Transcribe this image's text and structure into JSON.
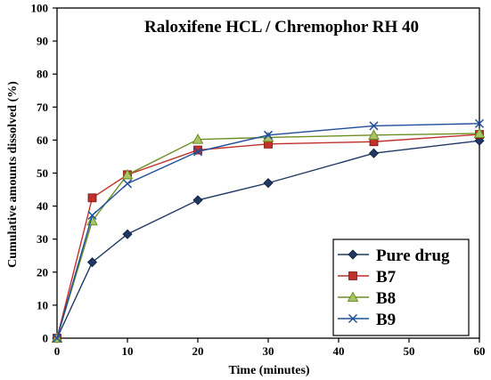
{
  "chart_data": {
    "type": "line",
    "title": "Raloxifene HCL / Chremophor RH 40",
    "xlabel": "Time (minutes)",
    "ylabel": "Cumulative  amounts dissolved (%)",
    "x": [
      0,
      5,
      10,
      20,
      30,
      45,
      60
    ],
    "xlim": [
      0,
      60
    ],
    "ylim": [
      0,
      100
    ],
    "xticks": [
      0,
      10,
      20,
      30,
      40,
      50,
      60
    ],
    "yticks": [
      0,
      10,
      20,
      30,
      40,
      50,
      60,
      70,
      80,
      90,
      100
    ],
    "grid": false,
    "legend_position": "bottom-right",
    "series": [
      {
        "name": "Pure drug",
        "color": "#1f3864",
        "marker": "diamond",
        "values": [
          0,
          23,
          31.5,
          41.8,
          47,
          56,
          59.8
        ]
      },
      {
        "name": "B7",
        "color": "#c0312b",
        "marker": "square",
        "values": [
          0,
          42.5,
          49.5,
          57,
          58.8,
          59.5,
          61.7
        ]
      },
      {
        "name": "B8",
        "color": "#6b8e23",
        "marker": "triangle",
        "values": [
          0,
          35.5,
          49.5,
          60.2,
          60.8,
          61.5,
          62
        ]
      },
      {
        "name": "B9",
        "color": "#1f4e9a",
        "marker": "x",
        "values": [
          0,
          37.2,
          46.8,
          56.5,
          61.5,
          64.3,
          65
        ]
      }
    ]
  }
}
